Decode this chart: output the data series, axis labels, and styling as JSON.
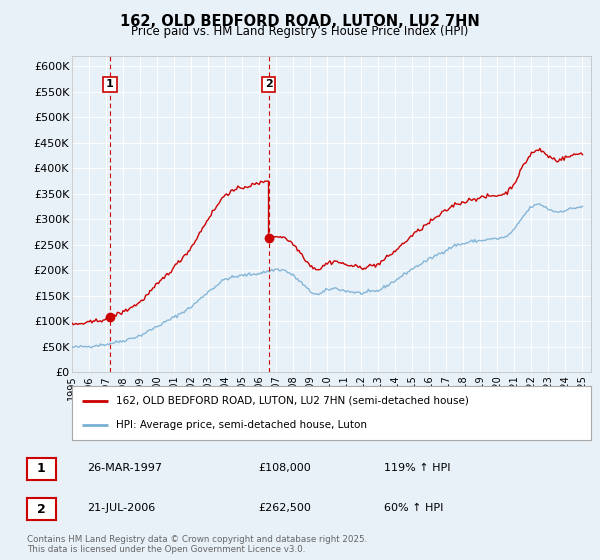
{
  "title": "162, OLD BEDFORD ROAD, LUTON, LU2 7HN",
  "subtitle": "Price paid vs. HM Land Registry’s House Price Index (HPI)",
  "ylim": [
    0,
    620000
  ],
  "xlim": [
    1995.0,
    2025.5
  ],
  "yticks": [
    0,
    50000,
    100000,
    150000,
    200000,
    250000,
    300000,
    350000,
    400000,
    450000,
    500000,
    550000,
    600000
  ],
  "ytick_labels": [
    "£0",
    "£50K",
    "£100K",
    "£150K",
    "£200K",
    "£250K",
    "£300K",
    "£350K",
    "£400K",
    "£450K",
    "£500K",
    "£550K",
    "£600K"
  ],
  "background_color": "#e8f0f8",
  "plot_bg_color": "#e8f0f8",
  "grid_color": "#ffffff",
  "red_color": "#cc0000",
  "blue_color": "#7ab0d4",
  "sale1_year": 1997.23,
  "sale1_price": 108000,
  "sale2_year": 2006.55,
  "sale2_price": 262500,
  "legend_red_label": "162, OLD BEDFORD ROAD, LUTON, LU2 7HN (semi-detached house)",
  "legend_blue_label": "HPI: Average price, semi-detached house, Luton",
  "table_rows": [
    {
      "num": "1",
      "date": "26-MAR-1997",
      "price": "£108,000",
      "hpi": "119% ↑ HPI"
    },
    {
      "num": "2",
      "date": "21-JUL-2006",
      "price": "£262,500",
      "hpi": "60% ↑ HPI"
    }
  ],
  "copyright": "Contains HM Land Registry data © Crown copyright and database right 2025.\nThis data is licensed under the Open Government Licence v3.0."
}
